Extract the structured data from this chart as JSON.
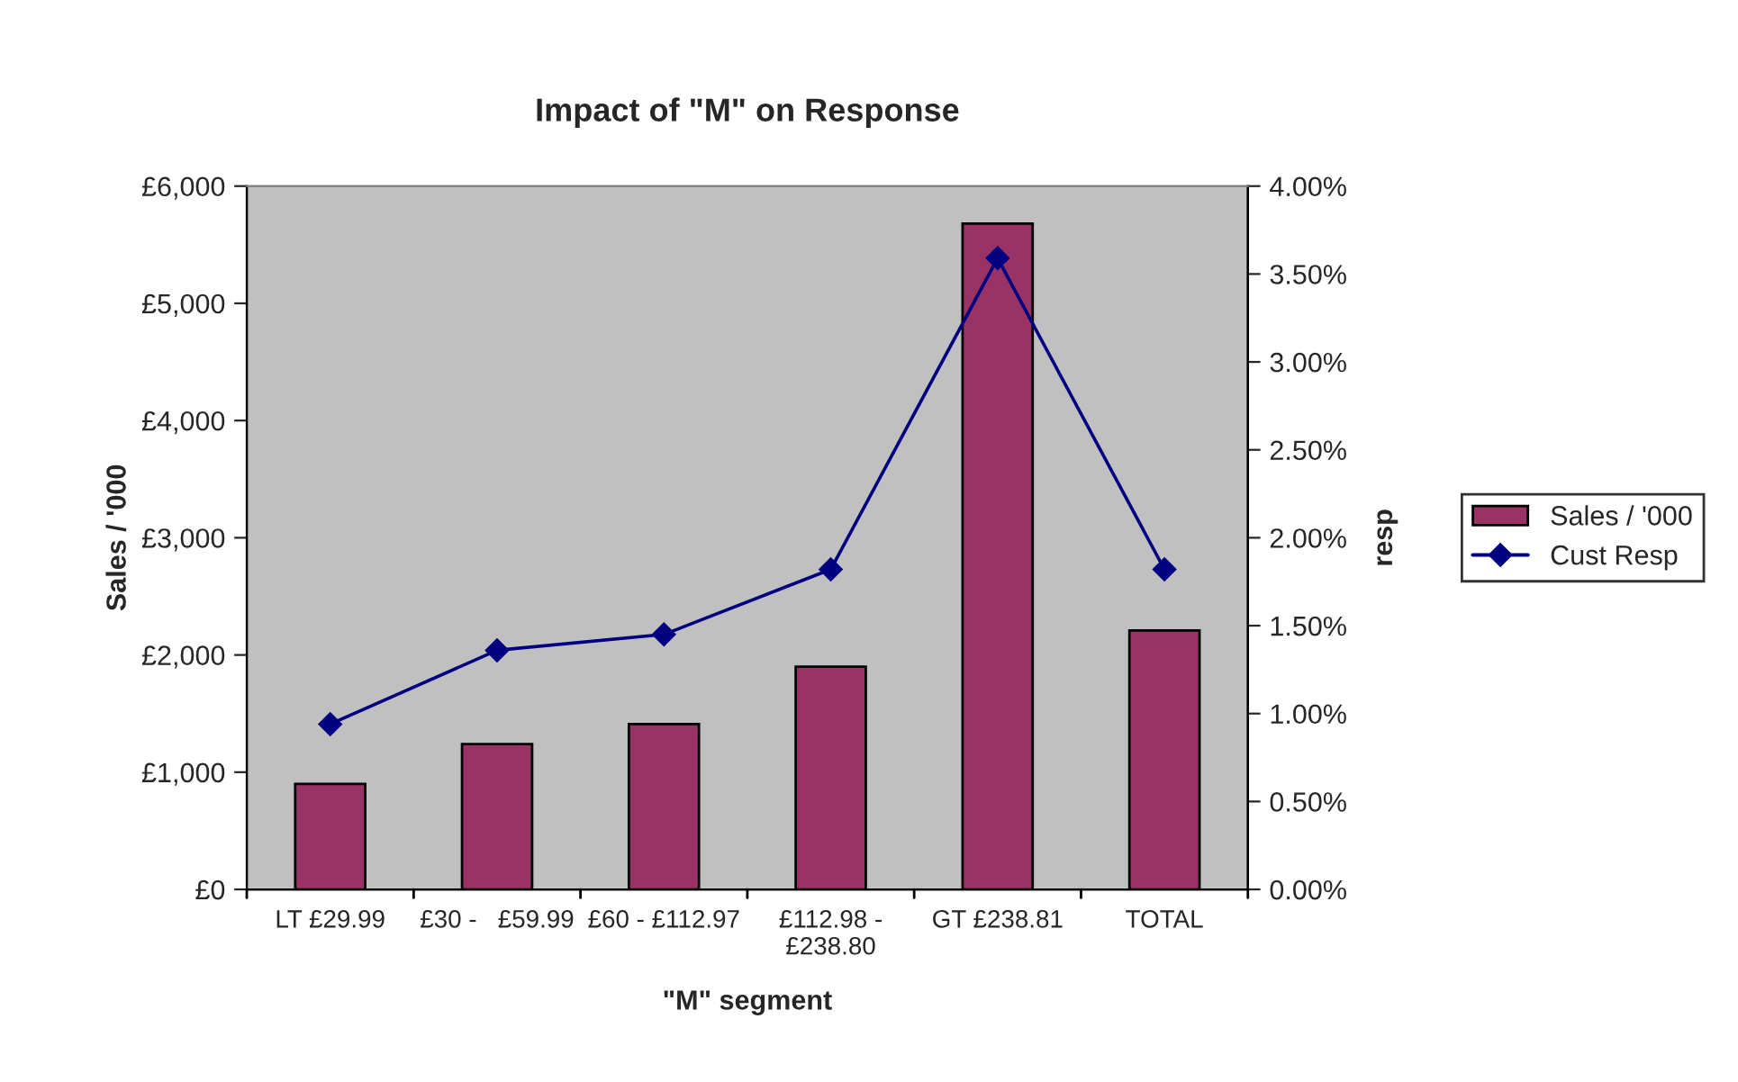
{
  "chart_data": {
    "type": "bar",
    "title": "Impact of \"M\" on Response",
    "xlabel": "\"M\" segment",
    "ylabel": "Sales / '000",
    "y2label": "resp",
    "categories": [
      "LT £29.99",
      "£30 -   £59.99",
      "£60 - £112.97",
      "£112.98 -\n£238.80",
      "GT £238.81",
      "TOTAL"
    ],
    "series": [
      {
        "name": "Sales / '000",
        "color": "#993366",
        "values": [
          900,
          1240,
          1410,
          1900,
          5680,
          2210
        ]
      },
      {
        "name": "Cust Resp",
        "type": "line",
        "axis": "y2",
        "color": "#000080",
        "marker": "diamond",
        "line_style": "solid",
        "values": [
          0.94,
          1.36,
          1.45,
          1.82,
          3.59,
          1.82
        ]
      }
    ],
    "ylim": [
      0,
      6000
    ],
    "yticks": [
      {
        "value": 0,
        "label": "£0"
      },
      {
        "value": 1000,
        "label": "£1,000"
      },
      {
        "value": 2000,
        "label": "£2,000"
      },
      {
        "value": 3000,
        "label": "£3,000"
      },
      {
        "value": 4000,
        "label": "£4,000"
      },
      {
        "value": 5000,
        "label": "£5,000"
      },
      {
        "value": 6000,
        "label": "£6,000"
      }
    ],
    "y2lim": [
      0,
      4
    ],
    "y2ticks": [
      {
        "value": 0,
        "label": "0.00%"
      },
      {
        "value": 0.5,
        "label": "0.50%"
      },
      {
        "value": 1,
        "label": "1.00%"
      },
      {
        "value": 1.5,
        "label": "1.50%"
      },
      {
        "value": 2,
        "label": "2.00%"
      },
      {
        "value": 2.5,
        "label": "2.50%"
      },
      {
        "value": 3,
        "label": "3.00%"
      },
      {
        "value": 3.5,
        "label": "3.50%"
      },
      {
        "value": 4,
        "label": "4.00%"
      }
    ],
    "grid": false,
    "legend": "right"
  }
}
